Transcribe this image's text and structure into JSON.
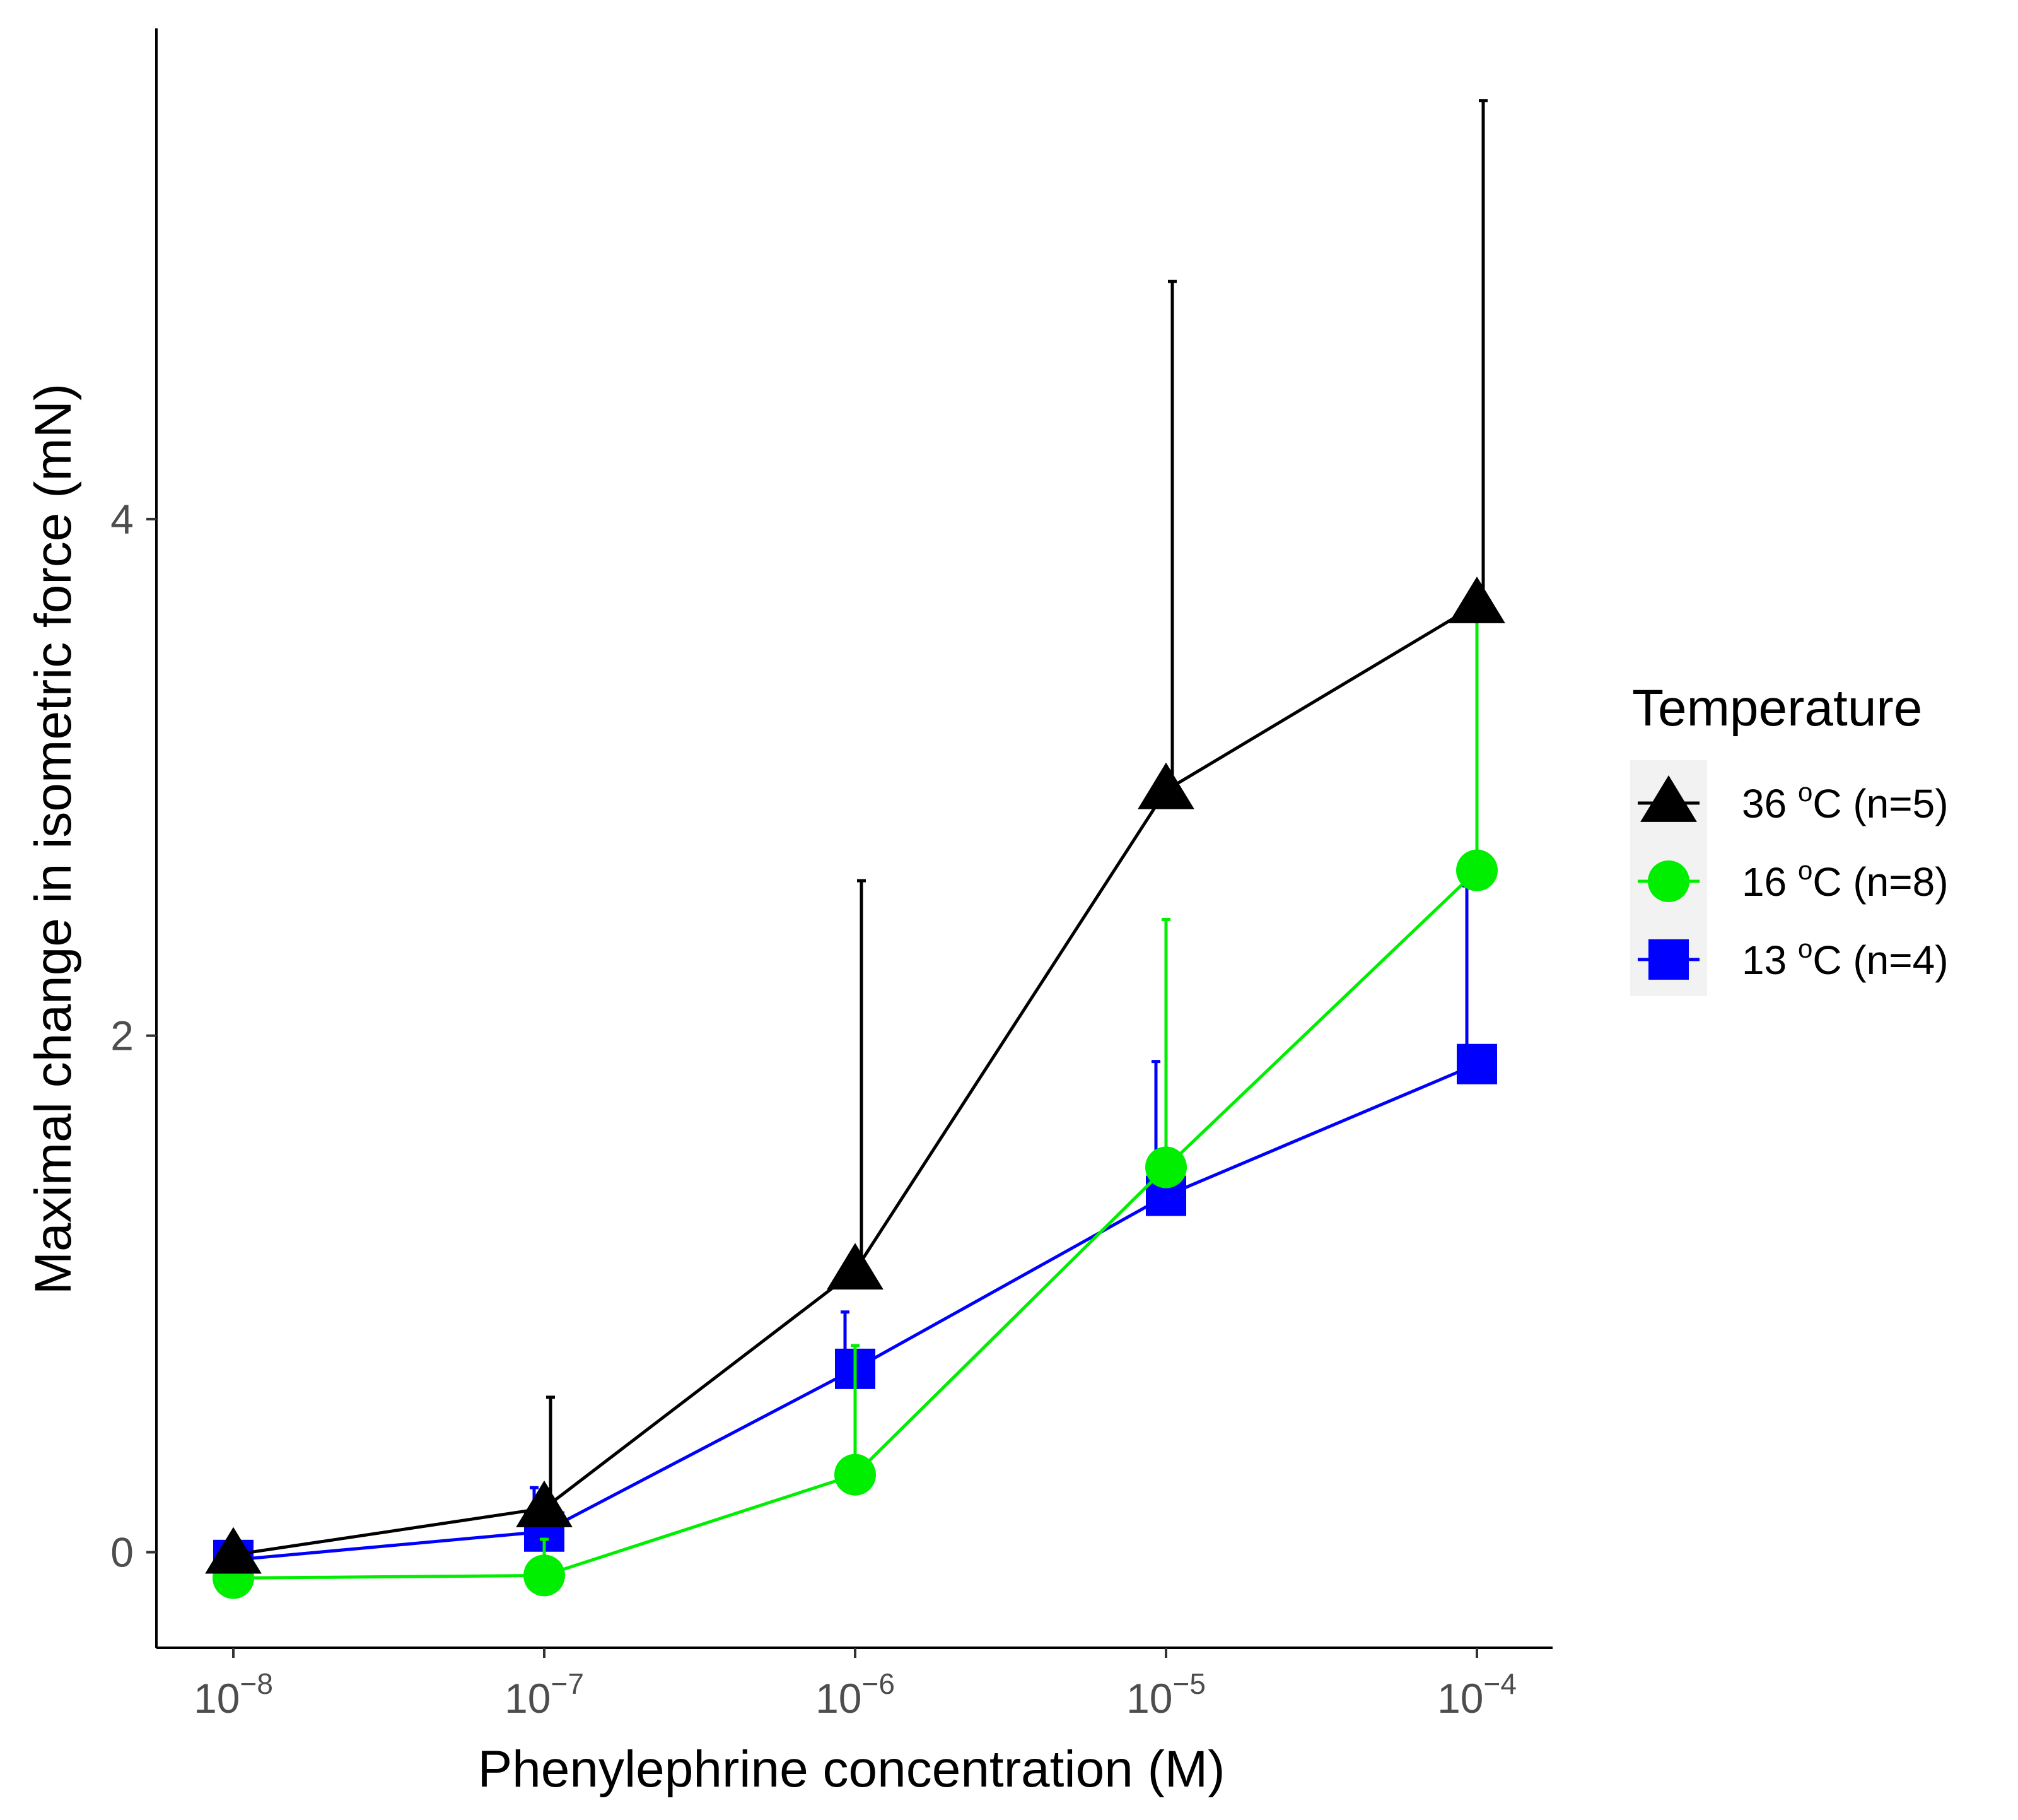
{
  "chart_data": {
    "type": "line",
    "title": "",
    "xlabel": "Phenylephrine concentration (M)",
    "ylabel": "Maximal change in isometric force (mN)",
    "x_scale": "log10",
    "x_exponents": [
      -8,
      -7,
      -6,
      -5,
      -4
    ],
    "x_tick_labels": [
      {
        "base": "10",
        "exp": "−8"
      },
      {
        "base": "10",
        "exp": "−7"
      },
      {
        "base": "10",
        "exp": "−6"
      },
      {
        "base": "10",
        "exp": "−5"
      },
      {
        "base": "10",
        "exp": "−4"
      }
    ],
    "y_ticks": [
      0,
      2,
      4
    ],
    "y_tick_labels": [
      "0",
      "2",
      "4"
    ],
    "ylim": [
      -0.37,
      5.9
    ],
    "grid": false,
    "legend": {
      "title": "Temperature",
      "position": "right",
      "entries": [
        {
          "temp": "36",
          "unit": "C",
          "n": "(n=5)",
          "sup": "o"
        },
        {
          "temp": "16",
          "unit": "C",
          "n": "(n=8)",
          "sup": "o"
        },
        {
          "temp": "13",
          "unit": "C",
          "n": "(n=4)",
          "sup": "o"
        }
      ]
    },
    "series": [
      {
        "name": "36 °C (n=5)",
        "color": "#000000",
        "marker": "triangle",
        "values": [
          -0.01,
          0.17,
          1.09,
          2.95,
          3.67
        ],
        "err_upper": [
          0.0,
          0.6,
          2.6,
          4.92,
          5.62
        ]
      },
      {
        "name": "16 °C (n=8)",
        "color": "#00ee00",
        "marker": "circle",
        "values": [
          -0.1,
          -0.09,
          0.3,
          1.49,
          2.64
        ],
        "err_upper": [
          -0.04,
          0.05,
          0.8,
          2.45,
          3.71
        ]
      },
      {
        "name": "13 °C (n=4)",
        "color": "#0000ff",
        "marker": "square",
        "values": [
          -0.03,
          0.08,
          0.71,
          1.38,
          1.89
        ],
        "err_upper": [
          0.0,
          0.25,
          0.93,
          1.9,
          2.58
        ]
      }
    ]
  }
}
